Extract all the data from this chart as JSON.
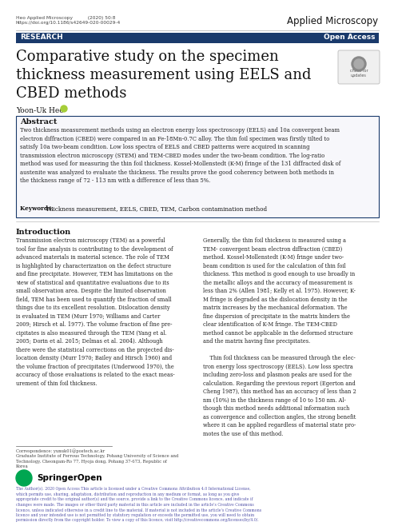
{
  "bg_color": "#ffffff",
  "header_left_line1": "Heo Applied Microscopy          (2020) 50:8",
  "header_left_line2": "https://doi.org/10.1186/s42649-020-00029-4",
  "header_right": "Applied Microscopy",
  "research_bar_color": "#1a3a6b",
  "research_text": "RESEARCH",
  "open_access_text": "Open Access",
  "title": "Comparative study on the specimen\nthickness measurement using EELS and\nCBED methods",
  "author": "Yoon-Uk Heo",
  "abstract_title": "Abstract",
  "abstract_body": "Two thickness measurement methods using an electron energy loss spectroscopy (EELS) and 10a convergent beam\nelectron diffraction (CBED) were compared in an Fe-18Mn-0.7C alloy. The thin foil specimen was firstly tilted to\nsatisfy 10a two-beam condition. Low loss spectra of EELS and CBED patterns were acquired in scanning\ntransmission electron microscopy (STEM) and TEM-CBED modes under the two-beam condition. The log-ratio\nmethod was used for measuring the thin foil thickness. Kossel-Mollenstedt (K-M) fringe of the 131 diffracted disk of\naustenite was analyzed to evaluate the thickness. The results prove the good coherency between both methods in\nthe thickness range of 72 - 113 nm with a difference of less than 5%.",
  "keywords_label": "Keywords: ",
  "keywords_text": "Thickness measurement, EELS, CBED, TEM, Carbon contamination method",
  "intro_title": "Introduction",
  "intro_left": "Transmission electron microscopy (TEM) as a powerful\ntool for fine analysis is contributing to the development of\nadvanced materials in material science. The role of TEM\nis highlighted by characterization on the defect structure\nand fine precipitate. However, TEM has limitations on the\nview of statistical and quantitative evaluations due to its\nsmall observation area. Despite the limited observation\nfield, TEM has been used to quantify the fraction of small\nthings due to its excellent resolution. Dislocation density\nis evaluated in TEM (Murr 1970; Williams and Carter\n2009; Hirsch et al. 1977). The volume fraction of fine pre-\ncipitates is also measured through the TEM (Yang et al.\n2005; Dorin et al. 2015; Delmas et al. 2004). Although\nthere were the statistical corrections on the projected dis-\nlocation density (Murr 1970; Bailey and Hirsch 1960) and\nthe volume fraction of precipitates (Underwood 1970), the\naccuracy of those evaluations is related to the exact meas-\nurement of thin foil thickness.",
  "intro_right": "Generally, the thin foil thickness is measured using a\nTEM- convergent beam electron diffraction (CBED)\nmethod. Kossel-Mollenstedt (K-M) fringe under two-\nbeam condition is used for the calculation of thin foil\nthickness. This method is good enough to use broadly in\nthe metallic alloys and the accuracy of measurement is\nless than 2% (Allen 1981; Kelly et al. 1975). However, K-\nM fringe is degraded as the dislocation density in the\nmatrix increases by the mechanical deformation. The\nfine dispersion of precipitate in the matrix hinders the\nclear identification of K-M fringe. The TEM-CBED\nmethod cannot be applicable in the deformed structure\nand the matrix having fine precipitates.\n\n    Thin foil thickness can be measured through the elec-\ntron energy loss spectroscopy (EELS). Low loss spectra\nincluding zero-loss and plasmon peaks are used for the\ncalculation. Regarding the previous report (Egerton and\nCheng 1987), this method has an accuracy of less than 2\nnm (10%) in the thickness range of 10 to 150 nm. Al-\nthough this method needs additional information such\nas convergence and collection angles, the strong benefit\nwhere it can be applied regardless of material state pro-\nmotes the use of this method.",
  "correspondence_text": "Correspondence: yunuk01@postech.ac.kr\nGraduate Institute of Ferrous Technology, Pohang University of Science and\nTechnology, Cheongam-Ro 77, Hyoja dong, Pohang 37-673, Republic of\nKorea",
  "footer_text": "The Author(s). 2020 Open Access This article is licensed under a Creative Commons Attribution 4.0 International License,\nwhich permits use, sharing, adaptation, distribution and reproduction in any medium or format, as long as you give\nappropriate credit to the original author(s) and the source, provide a link to the Creative Commons licence, and indicate if\nchanges were made. The images or other third party material in this article are included in the article's Creative Commons\nlicence, unless indicated otherwise in a credit line to the material. If material is not included in the article's Creative Commons\nlicence and your intended use is not permitted by statutory regulation or exceeds the permitted use, you will need to obtain\npermission directly from the copyright holder. To view a copy of this licence, visit http://creativecommons.org/licenses/by/4.0/.",
  "springer_color": "#00a651",
  "abstract_border_color": "#1a3a6b"
}
